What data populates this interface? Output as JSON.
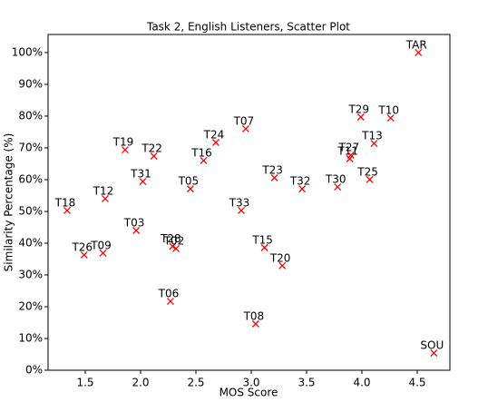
{
  "chart_data": {
    "type": "scatter",
    "title": "Task 2, English Listeners, Scatter Plot",
    "x_label": "MOS Score",
    "y_label": "Similarity Percentage (%)",
    "x": [
      1.336,
      1.49,
      1.66,
      1.68,
      1.86,
      1.96,
      2.12,
      2.02,
      2.29,
      2.32,
      2.27,
      2.45,
      2.57,
      2.68,
      2.95,
      2.91,
      3.04,
      3.12,
      3.28,
      3.21,
      3.46,
      3.78,
      3.89,
      3.9,
      3.99,
      4.11,
      4.07,
      4.26,
      4.51,
      4.65
    ],
    "series": [
      {
        "color": "#ff0000",
        "values": [
          50.3,
          36.3,
          36.9,
          54,
          69.4,
          44,
          67.4,
          59.4,
          39,
          38.3,
          21.7,
          57.1,
          66,
          71.7,
          76,
          50.3,
          14.6,
          38.6,
          32.9,
          60.6,
          57.1,
          57.7,
          66.6,
          67.7,
          79.7,
          71.4,
          60,
          79.4,
          100,
          5.4
        ],
        "point_labels": [
          "T18",
          "T26",
          "T09",
          "T12",
          "T19",
          "T03",
          "T22",
          "T31",
          "T28",
          "T02",
          "T06",
          "T05",
          "T16",
          "T24",
          "T07",
          "T33",
          "T08",
          "T15",
          "T20",
          "T23",
          "T32",
          "T30",
          "T11",
          "T27",
          "T29",
          "T13",
          "T25",
          "T10",
          "TAR",
          "SOU"
        ]
      }
    ],
    "xlim": [
      1.164,
      4.795
    ],
    "ylim": [
      0,
      105.7
    ],
    "xticks": [
      1.5,
      {
        "value": 2,
        "label": "2.0"
      },
      2.5,
      {
        "value": 3,
        "label": "3.0"
      },
      3.5,
      {
        "value": 4,
        "label": "4.0"
      },
      4.5
    ],
    "yticks": [
      {
        "value": 0,
        "label": "0%"
      },
      {
        "value": 10,
        "label": "10%"
      },
      {
        "value": 20,
        "label": "20%"
      },
      {
        "value": 30,
        "label": "30%"
      },
      {
        "value": 40,
        "label": "40%"
      },
      {
        "value": 50,
        "label": "50%"
      },
      {
        "value": 60,
        "label": "60%"
      },
      {
        "value": 70,
        "label": "70%"
      },
      {
        "value": 80,
        "label": "80%"
      },
      {
        "value": 90,
        "label": "90%"
      },
      {
        "value": 100,
        "label": "100%"
      }
    ]
  }
}
